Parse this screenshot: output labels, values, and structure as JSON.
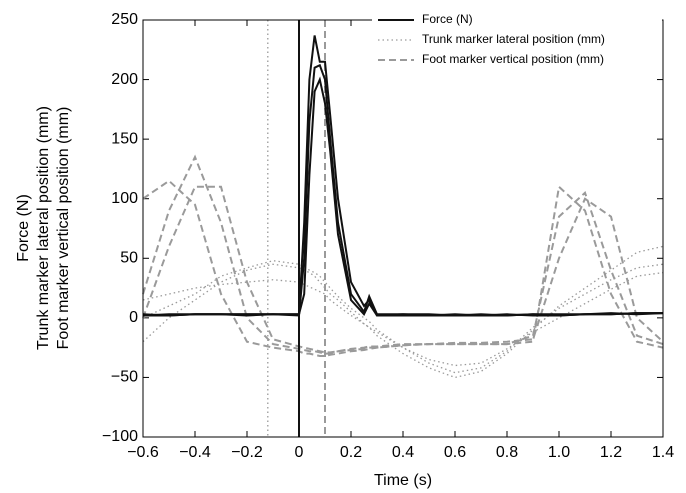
{
  "chart_data": {
    "type": "line",
    "xlabel": "Time (s)",
    "ylabel": [
      "Force (N)",
      "Trunk marker lateral position (mm)",
      "Foot marker vertical position (mm)"
    ],
    "x": [
      -0.6,
      -0.5,
      -0.4,
      -0.3,
      -0.2,
      -0.1,
      0,
      0.02,
      0.04,
      0.06,
      0.08,
      0.1,
      0.12,
      0.15,
      0.2,
      0.25,
      0.27,
      0.3,
      0.4,
      0.5,
      0.6,
      0.7,
      0.8,
      0.9,
      1.0,
      1.1,
      1.2,
      1.3,
      1.4
    ],
    "series": [
      {
        "name": "Force (N)",
        "color": "#111111",
        "style": "solid",
        "event": 0,
        "trials": [
          [
            2,
            3,
            3,
            3,
            3,
            3,
            3,
            80,
            200,
            237,
            215,
            215,
            170,
            100,
            30,
            10,
            15,
            2,
            3,
            2,
            2,
            2,
            3,
            2,
            2,
            3,
            3,
            4,
            4
          ],
          [
            2,
            2,
            3,
            3,
            3,
            3,
            2,
            50,
            165,
            210,
            212,
            200,
            150,
            80,
            20,
            5,
            18,
            3,
            3,
            3,
            2,
            3,
            2,
            3,
            3,
            3,
            4,
            3,
            4
          ],
          [
            3,
            2,
            3,
            3,
            2,
            3,
            3,
            20,
            120,
            190,
            200,
            180,
            140,
            70,
            15,
            3,
            12,
            2,
            2,
            2,
            3,
            2,
            2,
            3,
            2,
            3,
            3,
            4,
            4
          ]
        ]
      },
      {
        "name": "Trunk marker lateral position (mm)",
        "color": "#9a9a9a",
        "style": "dotted",
        "event": -0.12,
        "trials": [
          [
            -20,
            0,
            15,
            30,
            40,
            45,
            42,
            40,
            38,
            35,
            30,
            25,
            20,
            15,
            5,
            -5,
            -8,
            -15,
            -30,
            -42,
            -50,
            -45,
            -30,
            -10,
            10,
            25,
            40,
            55,
            60
          ],
          [
            0,
            10,
            20,
            35,
            42,
            48,
            45,
            43,
            40,
            38,
            35,
            30,
            25,
            18,
            8,
            0,
            -3,
            -10,
            -25,
            -38,
            -46,
            -42,
            -28,
            -8,
            8,
            20,
            32,
            42,
            45
          ],
          [
            15,
            20,
            25,
            28,
            30,
            32,
            30,
            28,
            26,
            24,
            22,
            20,
            15,
            10,
            2,
            -5,
            -8,
            -12,
            -25,
            -35,
            -40,
            -38,
            -26,
            -12,
            0,
            12,
            24,
            35,
            38
          ]
        ]
      },
      {
        "name": "Foot marker vertical position (mm)",
        "color": "#9a9a9a",
        "style": "dashed",
        "event": 0.1,
        "trials": [
          [
            100,
            115,
            95,
            20,
            -20,
            -25,
            -28,
            -30,
            -30,
            -31,
            -32,
            -32,
            -31,
            -30,
            -28,
            -27,
            -26,
            -25,
            -23,
            -22,
            -22,
            -22,
            -22,
            -20,
            110,
            90,
            20,
            -20,
            -25
          ],
          [
            20,
            90,
            135,
            80,
            0,
            -22,
            -26,
            -27,
            -28,
            -28,
            -29,
            -30,
            -30,
            -28,
            -27,
            -26,
            -25,
            -25,
            -23,
            -22,
            -22,
            -22,
            -22,
            -15,
            85,
            105,
            40,
            -15,
            -22
          ],
          [
            0,
            60,
            110,
            110,
            30,
            -18,
            -24,
            -25,
            -26,
            -27,
            -28,
            -29,
            -29,
            -28,
            -26,
            -25,
            -24,
            -24,
            -22,
            -22,
            -21,
            -21,
            -20,
            -18,
            50,
            100,
            85,
            0,
            -20
          ]
        ]
      }
    ],
    "xlim": [
      -0.6,
      1.4
    ],
    "xticks": [
      {
        "value": -0.6,
        "label": "−0.6"
      },
      {
        "value": -0.4,
        "label": "−0.4"
      },
      {
        "value": -0.2,
        "label": "−0.2"
      },
      0,
      0.2,
      0.4,
      0.6,
      0.8,
      {
        "value": 1,
        "label": "1.0"
      },
      1.2,
      1.4
    ],
    "ylim": [
      -100,
      250
    ],
    "yticks": [
      {
        "value": -100,
        "label": "−100"
      },
      {
        "value": -50,
        "label": "−50"
      },
      0,
      50,
      100,
      150,
      200,
      250
    ],
    "grid": false,
    "legend": "upper right"
  }
}
